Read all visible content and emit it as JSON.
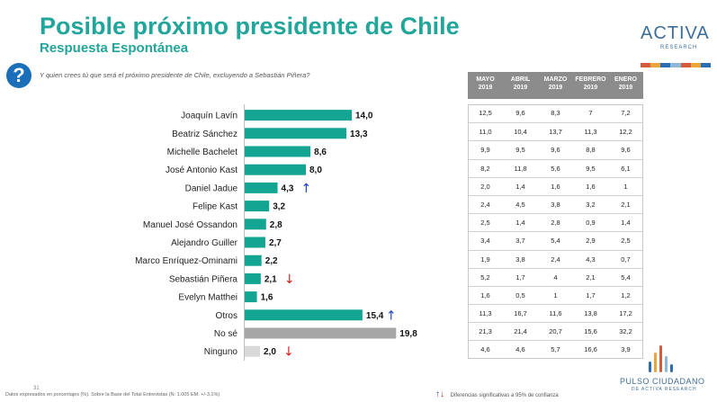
{
  "header": {
    "title": "Posible próximo presidente de Chile",
    "subtitle": "Respuesta Espontánea",
    "question": "Y quien crees tú que será el próximo presidente de Chile, excluyendo a Sebastián Piñera?"
  },
  "logo": {
    "text": "ACTIVA",
    "sub": "RESEARCH",
    "colors": [
      "#d65a3c",
      "#e9a53a",
      "#2a6db3",
      "#8fb8d8",
      "#d65a3c",
      "#e9a53a",
      "#2a6db3"
    ]
  },
  "table": {
    "headers": [
      [
        "MAYO",
        "2019"
      ],
      [
        "ABRIL",
        "2019"
      ],
      [
        "MARZO",
        "2019"
      ],
      [
        "FEBRERO",
        "2019"
      ],
      [
        "ENERO",
        "2019"
      ]
    ],
    "rows": [
      [
        "12,5",
        "9,6",
        "8,3",
        "7",
        "7,2"
      ],
      [
        "11,0",
        "10,4",
        "13,7",
        "11,3",
        "12,2"
      ],
      [
        "9,9",
        "9,5",
        "9,6",
        "8,8",
        "9,6"
      ],
      [
        "8,2",
        "11,8",
        "5,6",
        "9,5",
        "6,1"
      ],
      [
        "2,0",
        "1,4",
        "1,6",
        "1,6",
        "1"
      ],
      [
        "2,4",
        "4,5",
        "3,8",
        "3,2",
        "2,1"
      ],
      [
        "2,5",
        "1,4",
        "2,8",
        "0,9",
        "1,4"
      ],
      [
        "3,4",
        "3,7",
        "5,4",
        "2,9",
        "2,5"
      ],
      [
        "1,9",
        "3,8",
        "2,4",
        "4,3",
        "0,7"
      ],
      [
        "5,2",
        "1,7",
        "4",
        "2,1",
        "5,4"
      ],
      [
        "1,6",
        "0,5",
        "1",
        "1,7",
        "1,2"
      ],
      [
        "11,3",
        "16,7",
        "11,6",
        "13,8",
        "17,2"
      ],
      [
        "21,3",
        "21,4",
        "20,7",
        "15,6",
        "32,2"
      ],
      [
        "4,6",
        "4,6",
        "5,7",
        "16,6",
        "3,9"
      ]
    ]
  },
  "chart_data": {
    "type": "bar",
    "orientation": "horizontal",
    "title": "Posible próximo presidente de Chile",
    "subtitle": "Respuesta Espontánea",
    "categories": [
      "Joaquín Lavín",
      "Beatriz Sánchez",
      "Michelle Bachelet",
      "José Antonio Kast",
      "Daniel Jadue",
      "Felipe Kast",
      "Manuel José Ossandon",
      "Alejandro Guiller",
      "Marco Enríquez-Ominami",
      "Sebastián Piñera",
      "Evelyn Matthei",
      "Otros",
      "No sé",
      "Ninguno"
    ],
    "values": [
      14.0,
      13.3,
      8.6,
      8.0,
      4.3,
      3.2,
      2.8,
      2.7,
      2.2,
      2.1,
      1.6,
      15.4,
      19.8,
      2.0
    ],
    "labels": [
      "14,0",
      "13,3",
      "8,6",
      "8,0",
      "4,3",
      "3,2",
      "2,8",
      "2,7",
      "2,2",
      "2,1",
      "1,6",
      "15,4",
      "19,8",
      "2,0"
    ],
    "bar_colors": [
      "#13a592",
      "#13a592",
      "#13a592",
      "#13a592",
      "#13a592",
      "#13a592",
      "#13a592",
      "#13a592",
      "#13a592",
      "#13a592",
      "#13a592",
      "#13a592",
      "#a6a6a6",
      "#d9d9d9"
    ],
    "trend": [
      "",
      "",
      "",
      "",
      "up",
      "",
      "",
      "",
      "",
      "down",
      "",
      "up",
      "",
      "down"
    ],
    "xlim": [
      0,
      21
    ]
  },
  "trend_colors": {
    "up": "#1a3fc4",
    "down": "#d62020"
  },
  "footer": {
    "page_number": "31",
    "note": "Datos expresados en porcentajes (%). Sobre la Base del Total Entrevistas (N: 1.005 EM: +/-3,1%)",
    "legend": "Diferencias significativas a 95% de confianza",
    "brand": "PULSO CIUDADANO",
    "brand_sub": "DE ACTIVA RESEARCH"
  }
}
